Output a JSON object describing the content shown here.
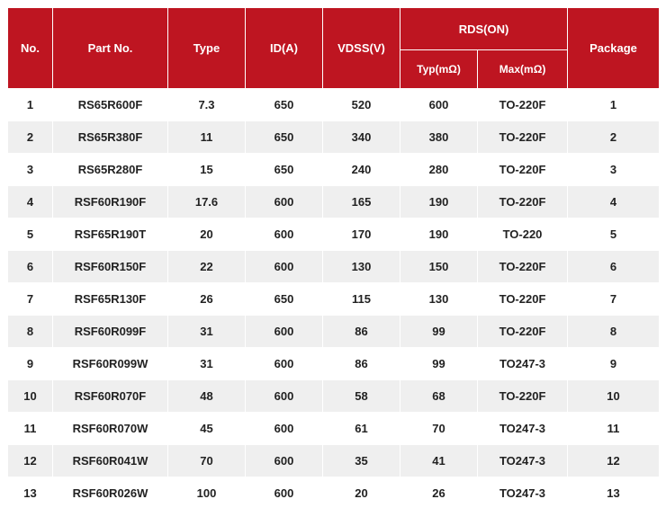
{
  "table": {
    "header_bg": "#be1521",
    "header_fg": "#ffffff",
    "row_odd_bg": "#ffffff",
    "row_even_bg": "#efefef",
    "border_color": "#ffffff",
    "text_color": "#222222",
    "font_family": "Arial, Helvetica, sans-serif",
    "font_size_header": 13,
    "font_size_cell": 13,
    "headers": {
      "no": "No.",
      "part_no": "Part No.",
      "type": "Type",
      "id_a": "ID(A)",
      "vdss": "VDSS(V)",
      "rds_on": "RDS(ON)",
      "typ": "Typ(mΩ)",
      "max": "Max(mΩ)",
      "package": "Package"
    },
    "columns": [
      "no",
      "part_no",
      "type",
      "id_a",
      "vdss",
      "typ",
      "max",
      "package"
    ],
    "rows": [
      {
        "no": "1",
        "part_no": "RS65R600F",
        "type": "7.3",
        "id_a": "650",
        "vdss": "520",
        "typ": "600",
        "max": "TO-220F",
        "package": "1"
      },
      {
        "no": "2",
        "part_no": "RS65R380F",
        "type": "11",
        "id_a": "650",
        "vdss": "340",
        "typ": "380",
        "max": "TO-220F",
        "package": "2"
      },
      {
        "no": "3",
        "part_no": "RS65R280F",
        "type": "15",
        "id_a": "650",
        "vdss": "240",
        "typ": "280",
        "max": "TO-220F",
        "package": "3"
      },
      {
        "no": "4",
        "part_no": "RSF60R190F",
        "type": "17.6",
        "id_a": "600",
        "vdss": "165",
        "typ": "190",
        "max": "TO-220F",
        "package": "4"
      },
      {
        "no": "5",
        "part_no": "RSF65R190T",
        "type": "20",
        "id_a": "600",
        "vdss": "170",
        "typ": "190",
        "max": "TO-220",
        "package": "5"
      },
      {
        "no": "6",
        "part_no": "RSF60R150F",
        "type": "22",
        "id_a": "600",
        "vdss": "130",
        "typ": "150",
        "max": "TO-220F",
        "package": "6"
      },
      {
        "no": "7",
        "part_no": "RSF65R130F",
        "type": "26",
        "id_a": "650",
        "vdss": "115",
        "typ": "130",
        "max": "TO-220F",
        "package": "7"
      },
      {
        "no": "8",
        "part_no": "RSF60R099F",
        "type": "31",
        "id_a": "600",
        "vdss": "86",
        "typ": "99",
        "max": "TO-220F",
        "package": "8"
      },
      {
        "no": "9",
        "part_no": "RSF60R099W",
        "type": "31",
        "id_a": "600",
        "vdss": "86",
        "typ": "99",
        "max": "TO247-3",
        "package": "9"
      },
      {
        "no": "10",
        "part_no": "RSF60R070F",
        "type": "48",
        "id_a": "600",
        "vdss": "58",
        "typ": "68",
        "max": "TO-220F",
        "package": "10"
      },
      {
        "no": "11",
        "part_no": "RSF60R070W",
        "type": "45",
        "id_a": "600",
        "vdss": "61",
        "typ": "70",
        "max": "TO247-3",
        "package": "11"
      },
      {
        "no": "12",
        "part_no": "RSF60R041W",
        "type": "70",
        "id_a": "600",
        "vdss": "35",
        "typ": "41",
        "max": "TO247-3",
        "package": "12"
      },
      {
        "no": "13",
        "part_no": "RSF60R026W",
        "type": "100",
        "id_a": "600",
        "vdss": "20",
        "typ": "26",
        "max": "TO247-3",
        "package": "13"
      }
    ]
  }
}
